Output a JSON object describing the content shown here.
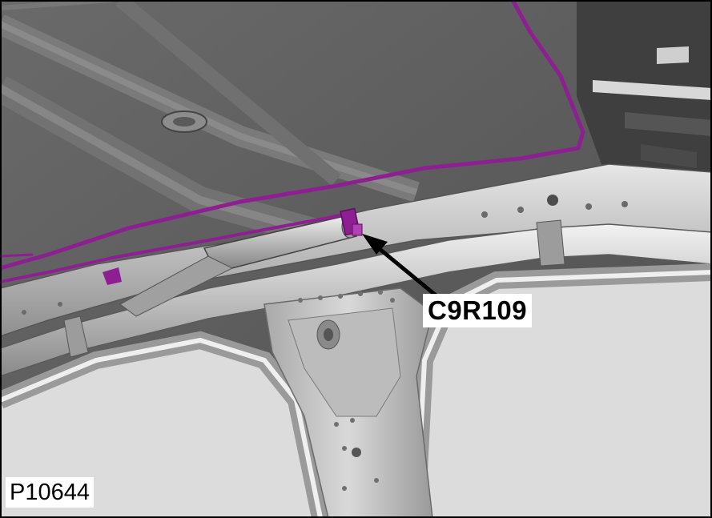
{
  "callout": {
    "label": "C9R109",
    "target": "connector"
  },
  "figure": {
    "id": "P10644"
  },
  "colors": {
    "harness": "#8e1f93",
    "roof_panel": "#5e5e5e",
    "body_metal": "#c9c9c9",
    "glass_opening": "#dcdcdc",
    "frame_border": "#000000",
    "arrow": "#000000"
  }
}
